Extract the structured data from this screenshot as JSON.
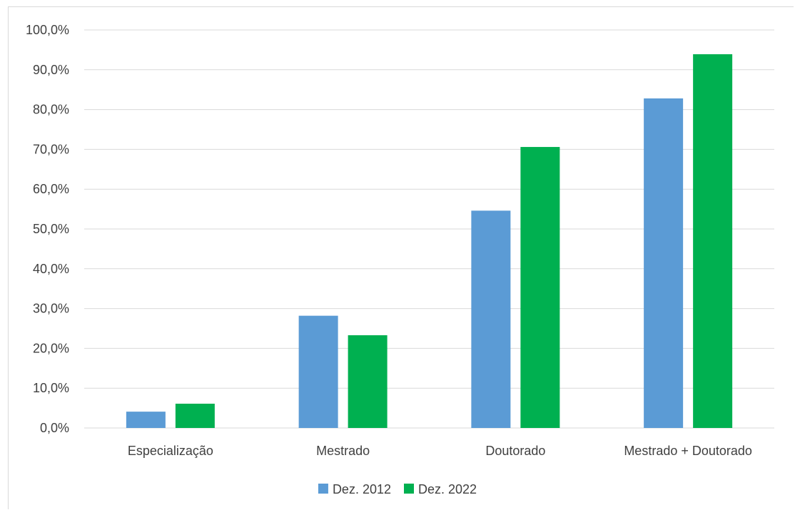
{
  "chart_data": {
    "type": "bar",
    "title": "",
    "xlabel": "",
    "ylabel": "",
    "categories": [
      "Especialização",
      "Mestrado",
      "Doutorado",
      "Mestrado + Doutorado"
    ],
    "series": [
      {
        "name": "Dez. 2012",
        "color": "#5b9bd5",
        "values": [
          4.1,
          28.2,
          54.6,
          82.8
        ]
      },
      {
        "name": "Dez. 2022",
        "color": "#00b050",
        "values": [
          6.1,
          23.3,
          70.6,
          93.9
        ]
      }
    ],
    "ylim": [
      0,
      100
    ],
    "yticks": [
      0,
      10,
      20,
      30,
      40,
      50,
      60,
      70,
      80,
      90,
      100
    ],
    "ytick_labels": [
      "0,0%",
      "10,0%",
      "20,0%",
      "30,0%",
      "40,0%",
      "50,0%",
      "60,0%",
      "70,0%",
      "80,0%",
      "90,0%",
      "100,0%"
    ],
    "grid": true,
    "gridline_color": "#d9d9d9",
    "legend_position": "bottom"
  }
}
